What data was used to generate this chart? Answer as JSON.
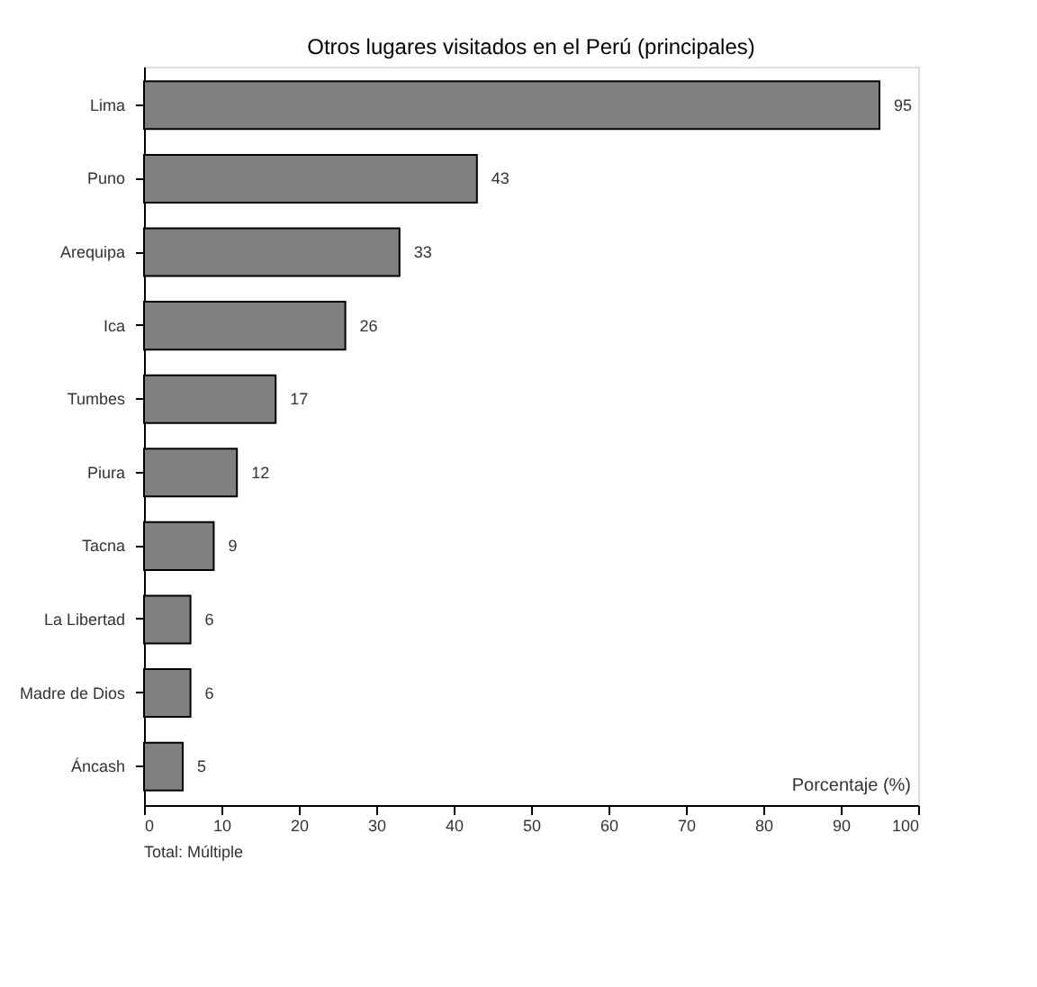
{
  "chart_data": {
    "type": "bar",
    "orientation": "horizontal",
    "title": "Otros lugares visitados en el Perú (principales)",
    "categories": [
      "Lima",
      "Puno",
      "Arequipa",
      "Ica",
      "Tumbes",
      "Piura",
      "Tacna",
      "La Libertad",
      "Madre de Dios",
      "Áncash"
    ],
    "values": [
      95,
      43,
      33,
      26,
      17,
      12,
      9,
      6,
      6,
      5
    ],
    "color": "#808080",
    "data_labels": true,
    "xlim": [
      0,
      100
    ],
    "xticks": [
      0,
      10,
      20,
      30,
      40,
      50,
      60,
      70,
      80,
      90,
      100
    ],
    "grid": false,
    "annotations": [
      "Porcentaje (%)",
      "Total: Múltiple"
    ]
  }
}
